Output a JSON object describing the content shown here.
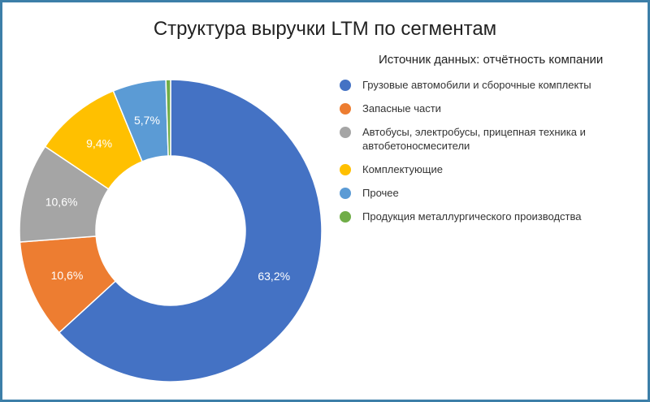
{
  "chart_data": {
    "type": "pie",
    "variant": "donut",
    "title": "Структура выручки LTM по сегментам",
    "subtitle": "Источник данных: отчётность компании",
    "legend_position": "right",
    "slices": [
      {
        "label": "Грузовые автомобили и сборочные комплекты",
        "value": 63.2,
        "display": "63,2%",
        "color": "#4472c4"
      },
      {
        "label": "Запасные части",
        "value": 10.6,
        "display": "10,6%",
        "color": "#ed7d31"
      },
      {
        "label": "Автобусы, электробусы, прицепная техника и автобетоносмесители",
        "value": 10.6,
        "display": "10,6%",
        "color": "#a5a5a5"
      },
      {
        "label": "Комплектующие",
        "value": 9.4,
        "display": "9,4%",
        "color": "#ffc000"
      },
      {
        "label": "Прочее",
        "value": 5.7,
        "display": "5,7%",
        "color": "#5b9bd5"
      },
      {
        "label": "Продукция металлургического производства",
        "value": 0.5,
        "display": "",
        "color": "#70ad47"
      }
    ]
  }
}
